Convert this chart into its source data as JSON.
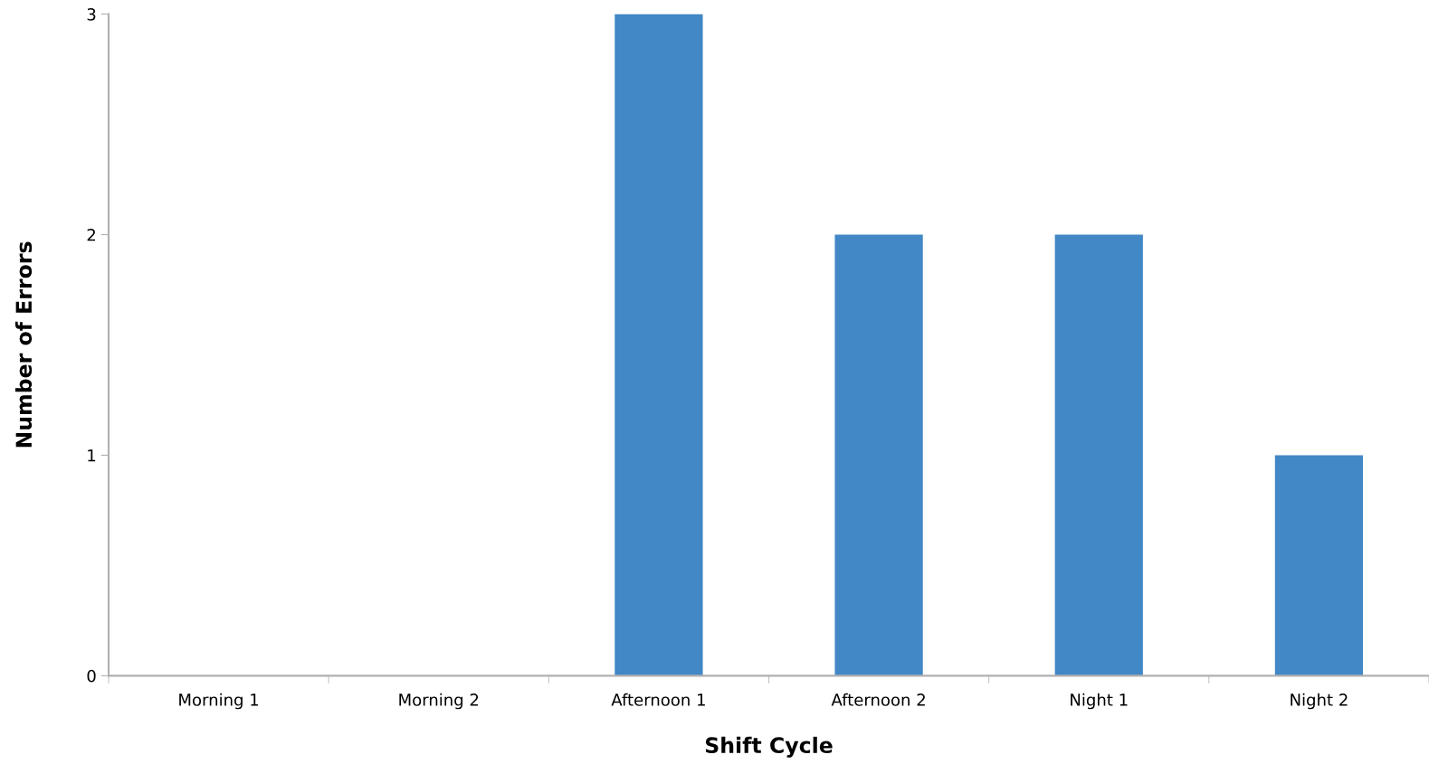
{
  "chart_data": {
    "type": "bar",
    "xlabel": "Shift Cycle",
    "ylabel": "Number of Errors",
    "categories": [
      "Morning 1",
      "Morning 2",
      "Afternoon 1",
      "Afternoon 2",
      "Night 1",
      "Night 2"
    ],
    "values": [
      0,
      0,
      3,
      2,
      2,
      1
    ],
    "color": "#4287c6",
    "ylim": [
      0,
      3
    ],
    "yticks": [
      0,
      1,
      2,
      3
    ],
    "grid": false,
    "legend": false
  }
}
